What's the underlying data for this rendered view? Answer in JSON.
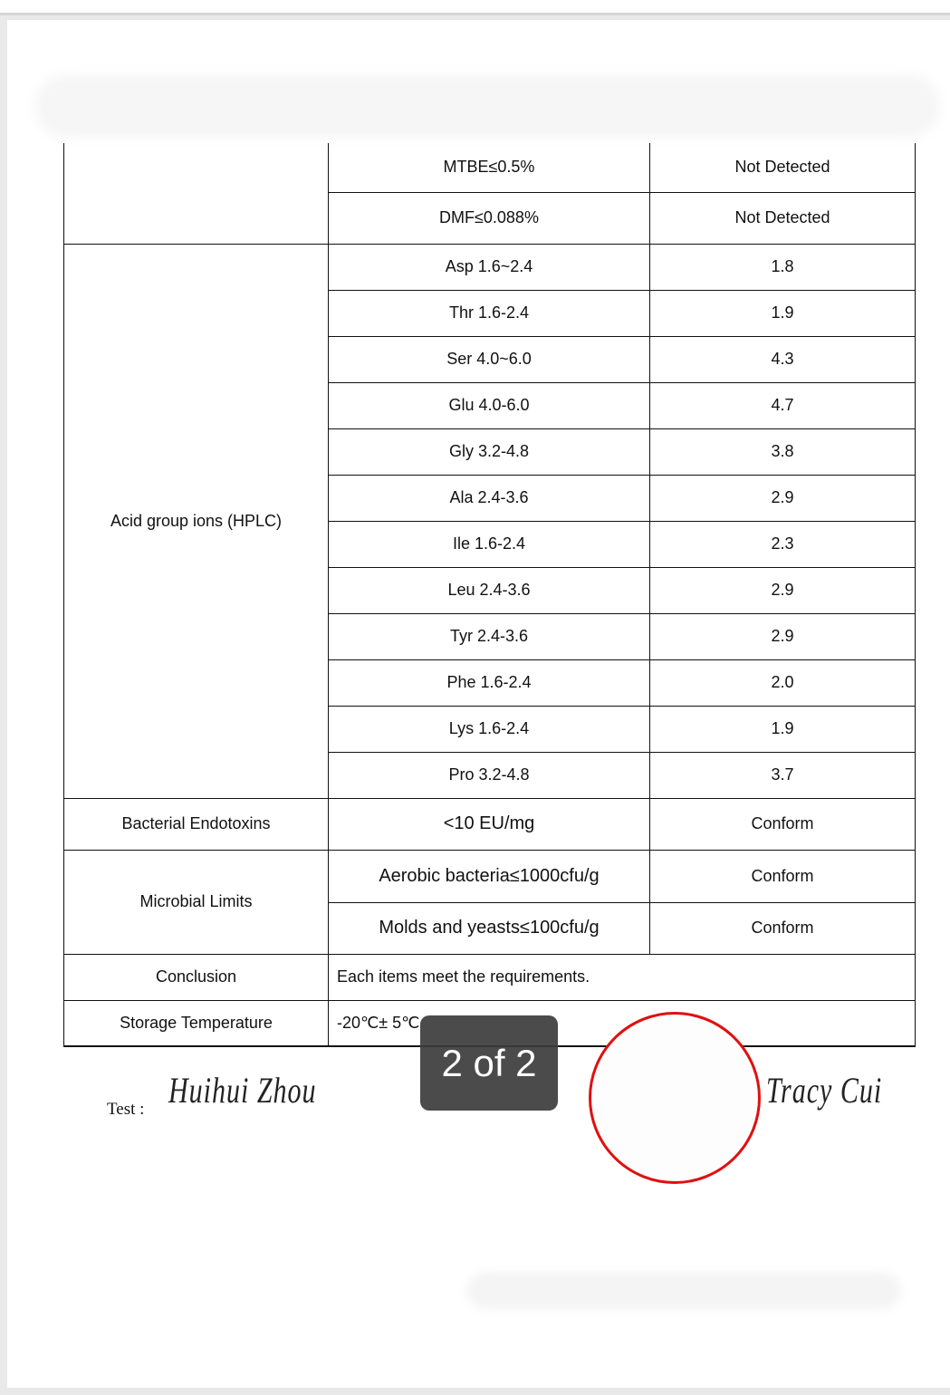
{
  "viewer": {
    "page_indicator": "2 of 2"
  },
  "table": {
    "rows": [
      {
        "item": "",
        "spec": "MTBE≤0.5%",
        "result": "Not Detected"
      },
      {
        "spec": "DMF≤0.088%",
        "result": "Not Detected"
      },
      {
        "item": "Acid group ions (HPLC)",
        "spec": "Asp 1.6~2.4",
        "result": "1.8"
      },
      {
        "spec": "Thr 1.6-2.4",
        "result": "1.9"
      },
      {
        "spec": "Ser 4.0~6.0",
        "result": "4.3"
      },
      {
        "spec": "Glu 4.0-6.0",
        "result": "4.7"
      },
      {
        "spec": "Gly 3.2-4.8",
        "result": "3.8"
      },
      {
        "spec": "Ala 2.4-3.6",
        "result": "2.9"
      },
      {
        "spec": "Ile 1.6-2.4",
        "result": "2.3"
      },
      {
        "spec": "Leu 2.4-3.6",
        "result": "2.9"
      },
      {
        "spec": "Tyr 2.4-3.6",
        "result": "2.9"
      },
      {
        "spec": "Phe 1.6-2.4",
        "result": "2.0"
      },
      {
        "spec": "Lys 1.6-2.4",
        "result": "1.9"
      },
      {
        "spec": "Pro 3.2-4.8",
        "result": "3.7"
      },
      {
        "item": "Bacterial Endotoxins",
        "spec": "<10 EU/mg",
        "result": "Conform"
      },
      {
        "item": "Microbial Limits",
        "spec": "Aerobic bacteria≤1000cfu/g",
        "result": "Conform"
      },
      {
        "spec": "Molds and yeasts≤100cfu/g",
        "result": "Conform"
      }
    ],
    "conclusion": {
      "label": "Conclusion",
      "value": "Each items meet the requirements."
    },
    "storage": {
      "label": "Storage Temperature",
      "value": "-20℃± 5℃"
    }
  },
  "signatures": {
    "test_label": "Test :",
    "tester": "Huihui Zhou",
    "approver": "Tracy Cui"
  },
  "colors": {
    "stamp": "#e01010",
    "pager_bg": "#3c3c3c"
  }
}
